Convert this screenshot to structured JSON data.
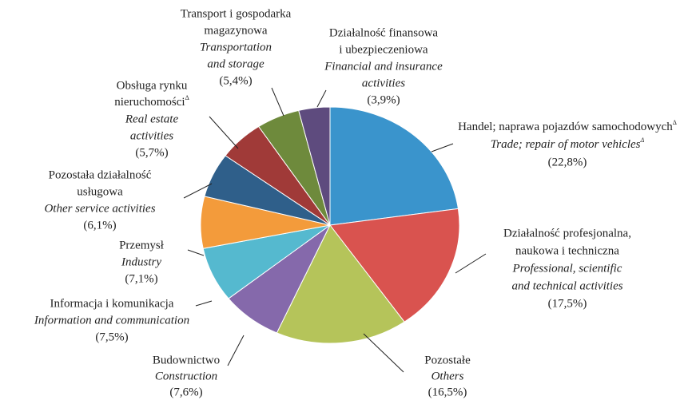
{
  "chart_data": {
    "type": "pie",
    "labels": [
      {
        "pl": [
          {
            "text": "Handel; naprawa pojazdów samochodowych",
            "sup": "Δ"
          }
        ],
        "en": [
          {
            "text": "Trade; repair of motor vehicles",
            "sup": "Δ"
          }
        ]
      },
      {
        "pl": [
          "Działalność profesjonalna,",
          "naukowa i techniczna"
        ],
        "en": [
          "Professional, scientific",
          "and technical activities"
        ]
      },
      {
        "pl": [
          "Pozostałe"
        ],
        "en": [
          "Others"
        ]
      },
      {
        "pl": [
          "Budownictwo"
        ],
        "en": [
          "Construction"
        ]
      },
      {
        "pl": [
          "Informacja i komunikacja"
        ],
        "en": [
          "Information and communication"
        ]
      },
      {
        "pl": [
          "Przemysł"
        ],
        "en": [
          "Industry"
        ]
      },
      {
        "pl": [
          "Pozostała działalność",
          "usługowa"
        ],
        "en": [
          "Other service activities"
        ]
      },
      {
        "pl": [
          "Obsługa rynku",
          {
            "text": "nieruchomości",
            "sup": "Δ"
          }
        ],
        "en": [
          "Real estate",
          "activities"
        ]
      },
      {
        "pl": [
          "Transport i gospodarka",
          "magazynowa"
        ],
        "en": [
          "Transportation",
          "and storage"
        ]
      },
      {
        "pl": [
          "Działalność finansowa",
          "i ubezpieczeniowa"
        ],
        "en": [
          "Financial and insurance",
          "activities"
        ]
      }
    ],
    "values": [
      22.8,
      17.5,
      16.5,
      7.6,
      7.5,
      7.1,
      6.1,
      5.7,
      5.4,
      3.9
    ],
    "value_labels": [
      "(22,8%)",
      "(17,5%)",
      "(16,5%)",
      "(7,6%)",
      "(7,5%)",
      "(7,1%)",
      "(6,1%)",
      "(5,7%)",
      "(5,4%)",
      "(3,9%)"
    ],
    "colors": [
      "#3a94cc",
      "#d9534f",
      "#b5c45a",
      "#8569ab",
      "#55b9cf",
      "#f39b3b",
      "#2f5f8a",
      "#a03a38",
      "#6e8a3c",
      "#5e4b7e"
    ]
  }
}
